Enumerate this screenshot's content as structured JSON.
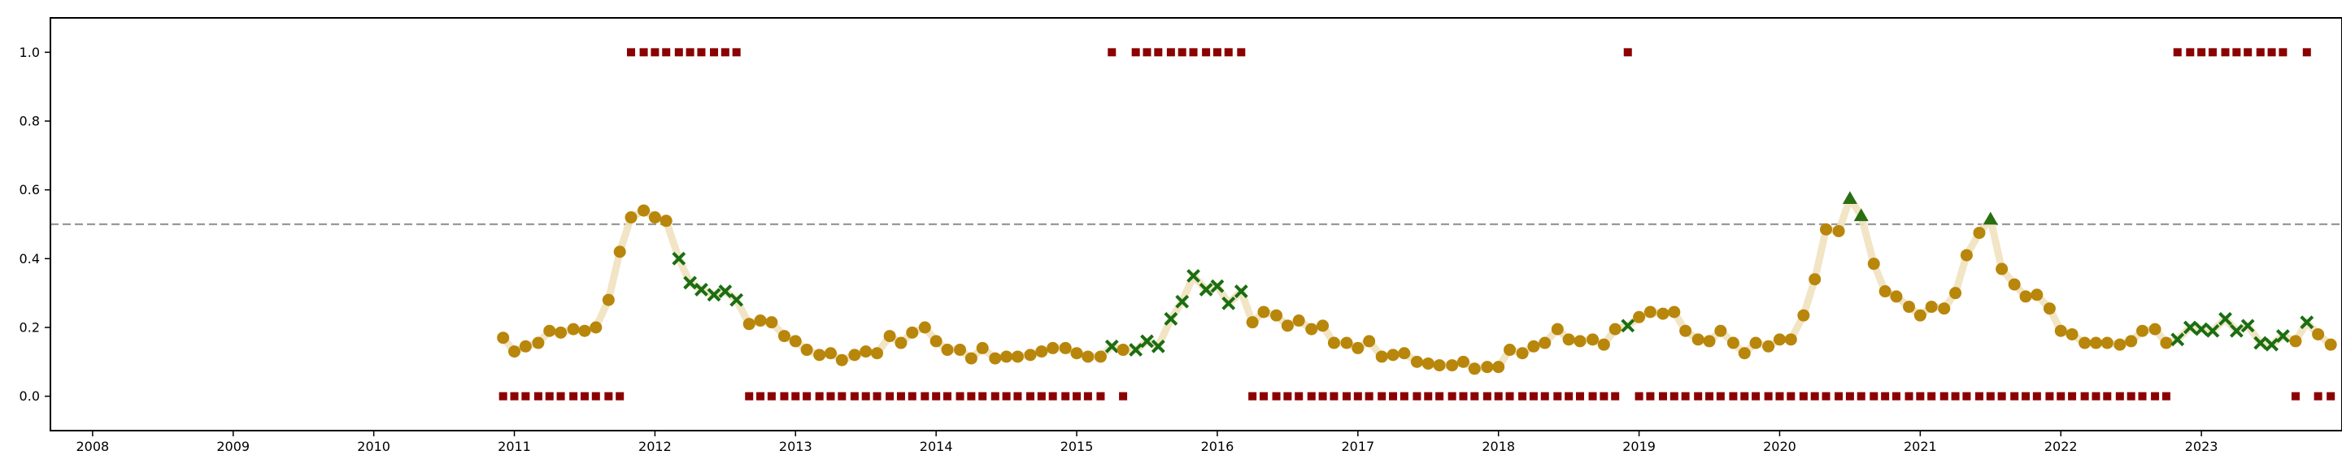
{
  "chart_data": {
    "type": "scatter",
    "title": "",
    "xlabel": "",
    "ylabel": "",
    "xlim": [
      2007.7,
      2024.0
    ],
    "ylim": [
      -0.1,
      1.1
    ],
    "grid": false,
    "legend": "none",
    "x_ticks": [
      "2008",
      "2009",
      "2010",
      "2011",
      "2012",
      "2013",
      "2014",
      "2015",
      "2016",
      "2017",
      "2018",
      "2019",
      "2020",
      "2021",
      "2022",
      "2023"
    ],
    "y_ticks": [
      "0.0",
      "0.2",
      "0.4",
      "0.6",
      "0.8",
      "1.0"
    ],
    "threshold": 0.5,
    "colors": {
      "smooth_line": "#f0e2bf",
      "circle": "#b8860b",
      "cross": "#1a6e12",
      "triangle": "#2a6e12",
      "square": "#8b0000",
      "threshold": "#999999",
      "axis": "#000000"
    },
    "series": [
      {
        "x": 2010.92,
        "y": 0.17,
        "m": "o"
      },
      {
        "x": 2011.0,
        "y": 0.13,
        "m": "o"
      },
      {
        "x": 2011.08,
        "y": 0.145,
        "m": "o"
      },
      {
        "x": 2011.17,
        "y": 0.155,
        "m": "o"
      },
      {
        "x": 2011.25,
        "y": 0.19,
        "m": "o"
      },
      {
        "x": 2011.33,
        "y": 0.185,
        "m": "o"
      },
      {
        "x": 2011.42,
        "y": 0.195,
        "m": "o"
      },
      {
        "x": 2011.5,
        "y": 0.19,
        "m": "o"
      },
      {
        "x": 2011.58,
        "y": 0.2,
        "m": "o"
      },
      {
        "x": 2011.67,
        "y": 0.28,
        "m": "o"
      },
      {
        "x": 2011.75,
        "y": 0.42,
        "m": "o"
      },
      {
        "x": 2011.83,
        "y": 0.52,
        "m": "o"
      },
      {
        "x": 2011.92,
        "y": 0.54,
        "m": "o"
      },
      {
        "x": 2012.0,
        "y": 0.52,
        "m": "o"
      },
      {
        "x": 2012.08,
        "y": 0.51,
        "m": "o"
      },
      {
        "x": 2012.17,
        "y": 0.4,
        "m": "x"
      },
      {
        "x": 2012.25,
        "y": 0.33,
        "m": "x"
      },
      {
        "x": 2012.33,
        "y": 0.31,
        "m": "x"
      },
      {
        "x": 2012.42,
        "y": 0.295,
        "m": "x"
      },
      {
        "x": 2012.5,
        "y": 0.305,
        "m": "x"
      },
      {
        "x": 2012.58,
        "y": 0.28,
        "m": "x"
      },
      {
        "x": 2012.67,
        "y": 0.21,
        "m": "o"
      },
      {
        "x": 2012.75,
        "y": 0.22,
        "m": "o"
      },
      {
        "x": 2012.83,
        "y": 0.215,
        "m": "o"
      },
      {
        "x": 2012.92,
        "y": 0.175,
        "m": "o"
      },
      {
        "x": 2013.0,
        "y": 0.16,
        "m": "o"
      },
      {
        "x": 2013.08,
        "y": 0.135,
        "m": "o"
      },
      {
        "x": 2013.17,
        "y": 0.12,
        "m": "o"
      },
      {
        "x": 2013.25,
        "y": 0.125,
        "m": "o"
      },
      {
        "x": 2013.33,
        "y": 0.105,
        "m": "o"
      },
      {
        "x": 2013.42,
        "y": 0.12,
        "m": "o"
      },
      {
        "x": 2013.5,
        "y": 0.13,
        "m": "o"
      },
      {
        "x": 2013.58,
        "y": 0.125,
        "m": "o"
      },
      {
        "x": 2013.67,
        "y": 0.175,
        "m": "o"
      },
      {
        "x": 2013.75,
        "y": 0.155,
        "m": "o"
      },
      {
        "x": 2013.83,
        "y": 0.185,
        "m": "o"
      },
      {
        "x": 2013.92,
        "y": 0.2,
        "m": "o"
      },
      {
        "x": 2014.0,
        "y": 0.16,
        "m": "o"
      },
      {
        "x": 2014.08,
        "y": 0.135,
        "m": "o"
      },
      {
        "x": 2014.17,
        "y": 0.135,
        "m": "o"
      },
      {
        "x": 2014.25,
        "y": 0.11,
        "m": "o"
      },
      {
        "x": 2014.33,
        "y": 0.14,
        "m": "o"
      },
      {
        "x": 2014.42,
        "y": 0.11,
        "m": "o"
      },
      {
        "x": 2014.5,
        "y": 0.115,
        "m": "o"
      },
      {
        "x": 2014.58,
        "y": 0.115,
        "m": "o"
      },
      {
        "x": 2014.67,
        "y": 0.12,
        "m": "o"
      },
      {
        "x": 2014.75,
        "y": 0.13,
        "m": "o"
      },
      {
        "x": 2014.83,
        "y": 0.14,
        "m": "o"
      },
      {
        "x": 2014.92,
        "y": 0.14,
        "m": "o"
      },
      {
        "x": 2015.0,
        "y": 0.125,
        "m": "o"
      },
      {
        "x": 2015.08,
        "y": 0.115,
        "m": "o"
      },
      {
        "x": 2015.17,
        "y": 0.115,
        "m": "o"
      },
      {
        "x": 2015.25,
        "y": 0.145,
        "m": "x"
      },
      {
        "x": 2015.33,
        "y": 0.135,
        "m": "o"
      },
      {
        "x": 2015.42,
        "y": 0.135,
        "m": "x"
      },
      {
        "x": 2015.5,
        "y": 0.16,
        "m": "x"
      },
      {
        "x": 2015.58,
        "y": 0.145,
        "m": "x"
      },
      {
        "x": 2015.67,
        "y": 0.225,
        "m": "x"
      },
      {
        "x": 2015.75,
        "y": 0.275,
        "m": "x"
      },
      {
        "x": 2015.83,
        "y": 0.35,
        "m": "x"
      },
      {
        "x": 2015.92,
        "y": 0.31,
        "m": "x"
      },
      {
        "x": 2016.0,
        "y": 0.32,
        "m": "x"
      },
      {
        "x": 2016.08,
        "y": 0.27,
        "m": "x"
      },
      {
        "x": 2016.17,
        "y": 0.305,
        "m": "x"
      },
      {
        "x": 2016.25,
        "y": 0.215,
        "m": "o"
      },
      {
        "x": 2016.33,
        "y": 0.245,
        "m": "o"
      },
      {
        "x": 2016.42,
        "y": 0.235,
        "m": "o"
      },
      {
        "x": 2016.5,
        "y": 0.205,
        "m": "o"
      },
      {
        "x": 2016.58,
        "y": 0.22,
        "m": "o"
      },
      {
        "x": 2016.67,
        "y": 0.195,
        "m": "o"
      },
      {
        "x": 2016.75,
        "y": 0.205,
        "m": "o"
      },
      {
        "x": 2016.83,
        "y": 0.155,
        "m": "o"
      },
      {
        "x": 2016.92,
        "y": 0.155,
        "m": "o"
      },
      {
        "x": 2017.0,
        "y": 0.14,
        "m": "o"
      },
      {
        "x": 2017.08,
        "y": 0.16,
        "m": "o"
      },
      {
        "x": 2017.17,
        "y": 0.115,
        "m": "o"
      },
      {
        "x": 2017.25,
        "y": 0.12,
        "m": "o"
      },
      {
        "x": 2017.33,
        "y": 0.125,
        "m": "o"
      },
      {
        "x": 2017.42,
        "y": 0.1,
        "m": "o"
      },
      {
        "x": 2017.5,
        "y": 0.095,
        "m": "o"
      },
      {
        "x": 2017.58,
        "y": 0.09,
        "m": "o"
      },
      {
        "x": 2017.67,
        "y": 0.09,
        "m": "o"
      },
      {
        "x": 2017.75,
        "y": 0.1,
        "m": "o"
      },
      {
        "x": 2017.83,
        "y": 0.08,
        "m": "o"
      },
      {
        "x": 2017.92,
        "y": 0.085,
        "m": "o"
      },
      {
        "x": 2018.0,
        "y": 0.085,
        "m": "o"
      },
      {
        "x": 2018.08,
        "y": 0.135,
        "m": "o"
      },
      {
        "x": 2018.17,
        "y": 0.125,
        "m": "o"
      },
      {
        "x": 2018.25,
        "y": 0.145,
        "m": "o"
      },
      {
        "x": 2018.33,
        "y": 0.155,
        "m": "o"
      },
      {
        "x": 2018.42,
        "y": 0.195,
        "m": "o"
      },
      {
        "x": 2018.5,
        "y": 0.165,
        "m": "o"
      },
      {
        "x": 2018.58,
        "y": 0.16,
        "m": "o"
      },
      {
        "x": 2018.67,
        "y": 0.165,
        "m": "o"
      },
      {
        "x": 2018.75,
        "y": 0.15,
        "m": "o"
      },
      {
        "x": 2018.83,
        "y": 0.195,
        "m": "o"
      },
      {
        "x": 2018.92,
        "y": 0.205,
        "m": "x"
      },
      {
        "x": 2019.0,
        "y": 0.23,
        "m": "o"
      },
      {
        "x": 2019.08,
        "y": 0.245,
        "m": "o"
      },
      {
        "x": 2019.17,
        "y": 0.24,
        "m": "o"
      },
      {
        "x": 2019.25,
        "y": 0.245,
        "m": "o"
      },
      {
        "x": 2019.33,
        "y": 0.19,
        "m": "o"
      },
      {
        "x": 2019.42,
        "y": 0.165,
        "m": "o"
      },
      {
        "x": 2019.5,
        "y": 0.16,
        "m": "o"
      },
      {
        "x": 2019.58,
        "y": 0.19,
        "m": "o"
      },
      {
        "x": 2019.67,
        "y": 0.155,
        "m": "o"
      },
      {
        "x": 2019.75,
        "y": 0.125,
        "m": "o"
      },
      {
        "x": 2019.83,
        "y": 0.155,
        "m": "o"
      },
      {
        "x": 2019.92,
        "y": 0.145,
        "m": "o"
      },
      {
        "x": 2020.0,
        "y": 0.165,
        "m": "o"
      },
      {
        "x": 2020.08,
        "y": 0.165,
        "m": "o"
      },
      {
        "x": 2020.17,
        "y": 0.235,
        "m": "o"
      },
      {
        "x": 2020.25,
        "y": 0.34,
        "m": "o"
      },
      {
        "x": 2020.33,
        "y": 0.485,
        "m": "o"
      },
      {
        "x": 2020.42,
        "y": 0.48,
        "m": "o"
      },
      {
        "x": 2020.5,
        "y": 0.575,
        "m": "^"
      },
      {
        "x": 2020.58,
        "y": 0.525,
        "m": "^"
      },
      {
        "x": 2020.67,
        "y": 0.385,
        "m": "o"
      },
      {
        "x": 2020.75,
        "y": 0.305,
        "m": "o"
      },
      {
        "x": 2020.83,
        "y": 0.29,
        "m": "o"
      },
      {
        "x": 2020.92,
        "y": 0.26,
        "m": "o"
      },
      {
        "x": 2021.0,
        "y": 0.235,
        "m": "o"
      },
      {
        "x": 2021.08,
        "y": 0.26,
        "m": "o"
      },
      {
        "x": 2021.17,
        "y": 0.255,
        "m": "o"
      },
      {
        "x": 2021.25,
        "y": 0.3,
        "m": "o"
      },
      {
        "x": 2021.33,
        "y": 0.41,
        "m": "o"
      },
      {
        "x": 2021.42,
        "y": 0.475,
        "m": "o"
      },
      {
        "x": 2021.5,
        "y": 0.515,
        "m": "^"
      },
      {
        "x": 2021.58,
        "y": 0.37,
        "m": "o"
      },
      {
        "x": 2021.67,
        "y": 0.325,
        "m": "o"
      },
      {
        "x": 2021.75,
        "y": 0.29,
        "m": "o"
      },
      {
        "x": 2021.83,
        "y": 0.295,
        "m": "o"
      },
      {
        "x": 2021.92,
        "y": 0.255,
        "m": "o"
      },
      {
        "x": 2022.0,
        "y": 0.19,
        "m": "o"
      },
      {
        "x": 2022.08,
        "y": 0.18,
        "m": "o"
      },
      {
        "x": 2022.17,
        "y": 0.155,
        "m": "o"
      },
      {
        "x": 2022.25,
        "y": 0.155,
        "m": "o"
      },
      {
        "x": 2022.33,
        "y": 0.155,
        "m": "o"
      },
      {
        "x": 2022.42,
        "y": 0.15,
        "m": "o"
      },
      {
        "x": 2022.5,
        "y": 0.16,
        "m": "o"
      },
      {
        "x": 2022.58,
        "y": 0.19,
        "m": "o"
      },
      {
        "x": 2022.67,
        "y": 0.195,
        "m": "o"
      },
      {
        "x": 2022.75,
        "y": 0.155,
        "m": "o"
      },
      {
        "x": 2022.83,
        "y": 0.165,
        "m": "x"
      },
      {
        "x": 2022.92,
        "y": 0.2,
        "m": "x"
      },
      {
        "x": 2023.0,
        "y": 0.195,
        "m": "x"
      },
      {
        "x": 2023.08,
        "y": 0.19,
        "m": "x"
      },
      {
        "x": 2023.17,
        "y": 0.225,
        "m": "x"
      },
      {
        "x": 2023.25,
        "y": 0.19,
        "m": "x"
      },
      {
        "x": 2023.33,
        "y": 0.205,
        "m": "x"
      },
      {
        "x": 2023.42,
        "y": 0.155,
        "m": "x"
      },
      {
        "x": 2023.5,
        "y": 0.15,
        "m": "x"
      },
      {
        "x": 2023.58,
        "y": 0.175,
        "m": "x"
      },
      {
        "x": 2023.67,
        "y": 0.16,
        "m": "o"
      },
      {
        "x": 2023.75,
        "y": 0.215,
        "m": "x"
      },
      {
        "x": 2023.83,
        "y": 0.18,
        "m": "o"
      },
      {
        "x": 2023.92,
        "y": 0.15,
        "m": "o"
      }
    ],
    "flags_high": [
      2011.83,
      2011.92,
      2012.0,
      2012.08,
      2012.17,
      2012.25,
      2012.33,
      2012.42,
      2012.5,
      2012.58,
      2015.25,
      2015.42,
      2015.5,
      2015.58,
      2015.67,
      2015.75,
      2015.83,
      2015.92,
      2016.0,
      2016.08,
      2016.17,
      2018.92,
      2022.83,
      2022.92,
      2023.0,
      2023.08,
      2023.17,
      2023.25,
      2023.33,
      2023.42,
      2023.5,
      2023.58,
      2023.75
    ],
    "flags_low": [
      2010.92,
      2011.0,
      2011.08,
      2011.17,
      2011.25,
      2011.33,
      2011.42,
      2011.5,
      2011.58,
      2011.67,
      2011.75,
      2012.67,
      2012.75,
      2012.83,
      2012.92,
      2013.0,
      2013.08,
      2013.17,
      2013.25,
      2013.33,
      2013.42,
      2013.5,
      2013.58,
      2013.67,
      2013.75,
      2013.83,
      2013.92,
      2014.0,
      2014.08,
      2014.17,
      2014.25,
      2014.33,
      2014.42,
      2014.5,
      2014.58,
      2014.67,
      2014.75,
      2014.83,
      2014.92,
      2015.0,
      2015.08,
      2015.17,
      2015.33,
      2016.25,
      2016.33,
      2016.42,
      2016.5,
      2016.58,
      2016.67,
      2016.75,
      2016.83,
      2016.92,
      2017.0,
      2017.08,
      2017.17,
      2017.25,
      2017.33,
      2017.42,
      2017.5,
      2017.58,
      2017.67,
      2017.75,
      2017.83,
      2017.92,
      2018.0,
      2018.08,
      2018.17,
      2018.25,
      2018.33,
      2018.42,
      2018.5,
      2018.58,
      2018.67,
      2018.75,
      2018.83,
      2019.0,
      2019.08,
      2019.17,
      2019.25,
      2019.33,
      2019.42,
      2019.5,
      2019.58,
      2019.67,
      2019.75,
      2019.83,
      2019.92,
      2020.0,
      2020.08,
      2020.17,
      2020.25,
      2020.33,
      2020.42,
      2020.5,
      2020.58,
      2020.67,
      2020.75,
      2020.83,
      2020.92,
      2021.0,
      2021.08,
      2021.17,
      2021.25,
      2021.33,
      2021.42,
      2021.5,
      2021.58,
      2021.67,
      2021.75,
      2021.83,
      2021.92,
      2022.0,
      2022.08,
      2022.17,
      2022.25,
      2022.33,
      2022.42,
      2022.5,
      2022.58,
      2022.67,
      2022.75,
      2023.67,
      2023.83,
      2023.92
    ]
  }
}
